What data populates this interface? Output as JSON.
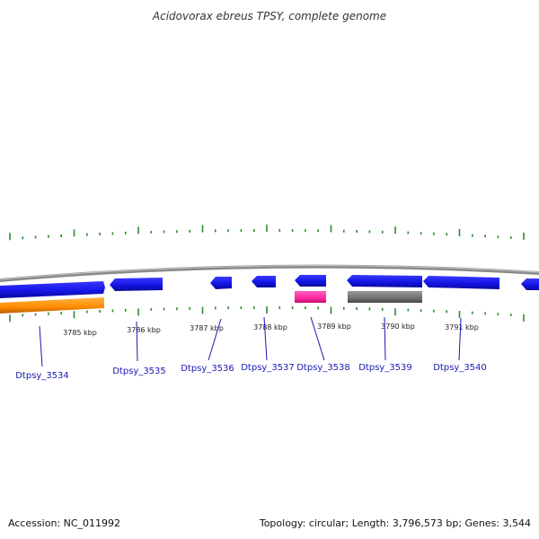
{
  "title": "Acidovorax ebreus TPSY, complete genome",
  "accession": "Accession: NC_011992",
  "summary": "Topology: circular; Length: 3,796,573 bp; Genes: 3,544",
  "colors": {
    "gene_blue": "#1515e6",
    "orange_feature": "#ff8c00",
    "pink_feature": "#ff2aa0",
    "gray_feature": "#707070",
    "tick_green": "#2e8b2e",
    "backbone": "#8a8a8a",
    "label_blue": "#1a1ab0"
  },
  "kbp_labels": [
    "3785 kbp",
    "3786 kbp",
    "3787 kbp",
    "3788 kbp",
    "3789 kbp",
    "3790 kbp",
    "3791 kbp"
  ],
  "genes": [
    {
      "id": "Dtpsy_3534",
      "strand": "+"
    },
    {
      "id": "Dtpsy_3535",
      "strand": "-"
    },
    {
      "id": "Dtpsy_3536",
      "strand": "-"
    },
    {
      "id": "Dtpsy_3537",
      "strand": "-"
    },
    {
      "id": "Dtpsy_3538",
      "strand": "-"
    },
    {
      "id": "Dtpsy_3539",
      "strand": "-"
    },
    {
      "id": "Dtpsy_3540",
      "strand": "-"
    }
  ]
}
